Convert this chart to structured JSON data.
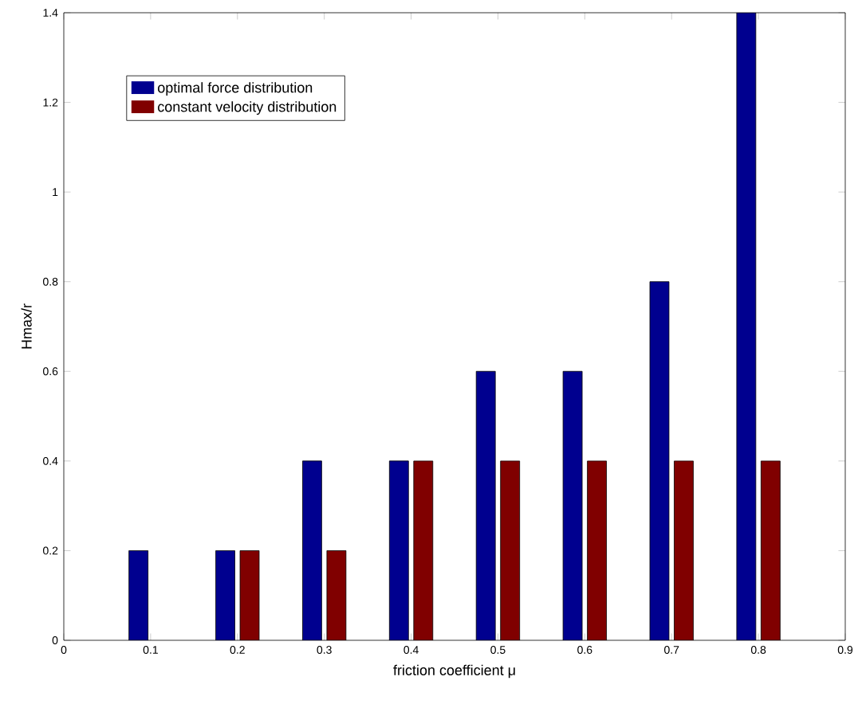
{
  "chart_data": {
    "type": "bar",
    "xlabel": "friction coefficient μ",
    "ylabel": "Hmax/r",
    "x": [
      0.1,
      0.2,
      0.3,
      0.4,
      0.5,
      0.6,
      0.7,
      0.8
    ],
    "series": [
      {
        "name": "optimal force distribution",
        "color": "#00008f",
        "values": [
          0.2,
          0.2,
          0.4,
          0.4,
          0.6,
          0.6,
          0.8,
          1.4
        ]
      },
      {
        "name": "constant velocity distribution",
        "color": "#800000",
        "values": [
          null,
          0.2,
          0.2,
          0.4,
          0.4,
          0.4,
          0.4,
          0.4
        ]
      }
    ],
    "xlim": [
      0,
      0.9
    ],
    "xticks": [
      0,
      0.1,
      0.2,
      0.3,
      0.4,
      0.5,
      0.6,
      0.7,
      0.8,
      0.9
    ],
    "ylim": [
      0,
      1.4
    ],
    "yticks": [
      0,
      0.2,
      0.4,
      0.6,
      0.8,
      1,
      1.2,
      1.4
    ],
    "legend": "top left",
    "grid": false
  }
}
